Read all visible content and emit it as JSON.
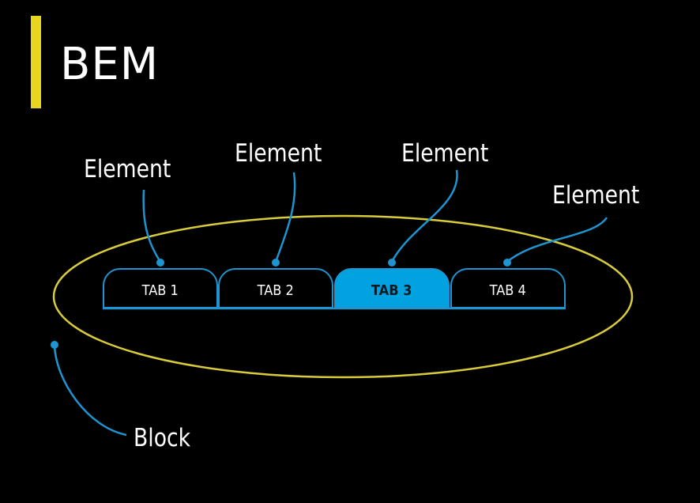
{
  "title": "BEM",
  "tabs": [
    {
      "label": "TAB 1",
      "active": false
    },
    {
      "label": "TAB 2",
      "active": false
    },
    {
      "label": "TAB 3",
      "active": true
    },
    {
      "label": "TAB 4",
      "active": false
    }
  ],
  "labels": {
    "element_1": "Element",
    "element_2": "Element",
    "element_3": "Element",
    "element_4": "Element",
    "block": "Block"
  },
  "colors": {
    "accent": "#e8d51d",
    "ellipse": "#d9cc3c",
    "connector": "#1e95d0",
    "active_tab": "#00a3e0",
    "text": "#ffffff",
    "background": "#000000"
  }
}
